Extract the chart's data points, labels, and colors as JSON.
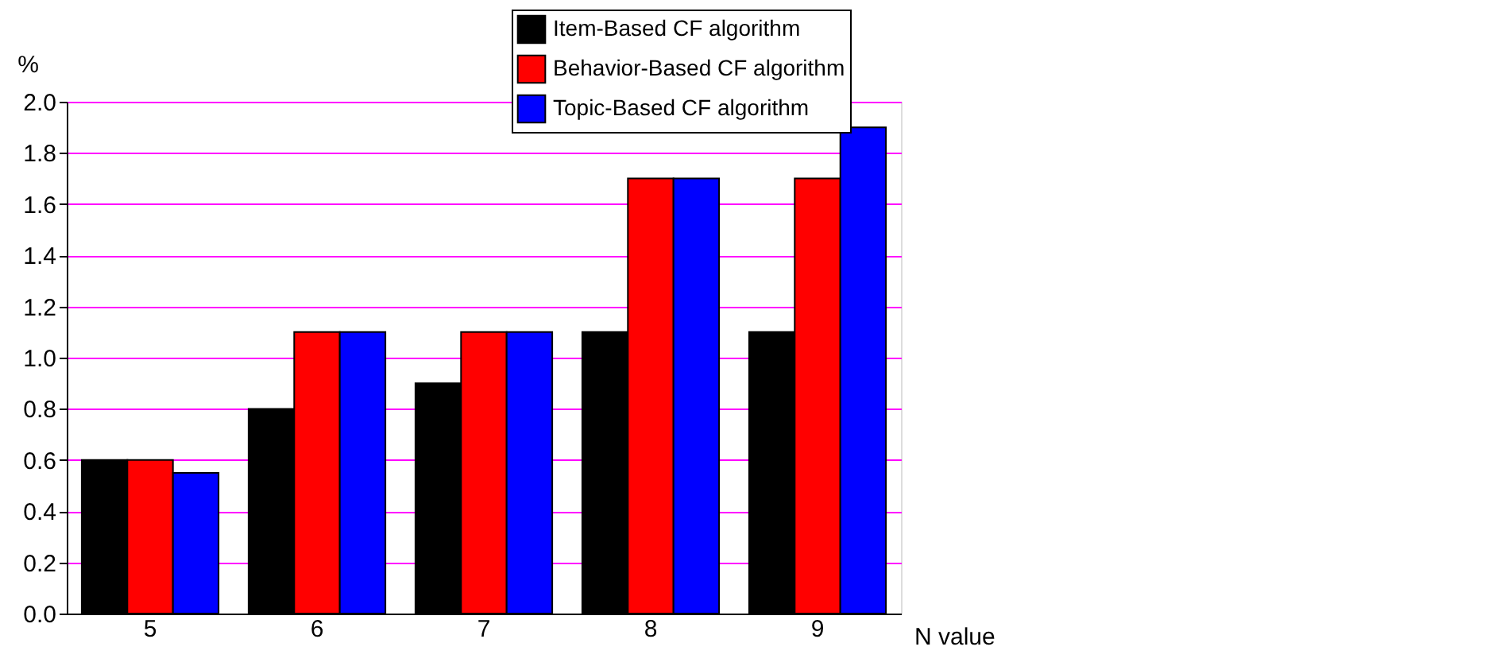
{
  "chart_data": {
    "type": "bar",
    "xlabel": "N value",
    "ylabel": "%",
    "categories": [
      "5",
      "6",
      "7",
      "8",
      "9"
    ],
    "series": [
      {
        "name": "Item-Based CF algorithm",
        "color": "#000000",
        "values": [
          0.6,
          0.8,
          0.9,
          1.1,
          1.1
        ]
      },
      {
        "name": "Behavior-Based CF algorithm",
        "color": "#ff0000",
        "values": [
          0.6,
          1.1,
          1.1,
          1.7,
          1.7
        ]
      },
      {
        "name": "Topic-Based CF algorithm",
        "color": "#0000ff",
        "values": [
          0.55,
          1.1,
          1.1,
          1.7,
          1.9
        ]
      }
    ],
    "ylim": [
      0,
      2.0
    ],
    "yticks": [
      {
        "value": 0,
        "label": "0.0"
      },
      0.2,
      0.4,
      0.6,
      0.8,
      {
        "value": 1.0,
        "label": "1.0"
      },
      1.2,
      1.4,
      1.6,
      1.8,
      {
        "value": 2.0,
        "label": "2.0"
      }
    ],
    "grid": "y",
    "legend": "top"
  }
}
